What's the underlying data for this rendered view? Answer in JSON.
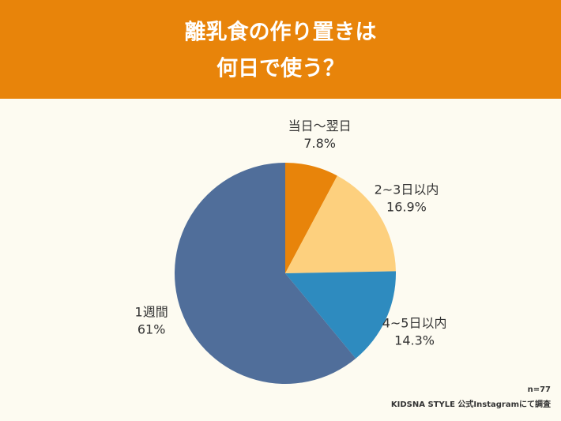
{
  "chart_data": {
    "type": "pie",
    "title": [
      "離乳食の作り置きは",
      "何日で使う？"
    ],
    "categories": [
      "当日〜翌日",
      "2~3日以内",
      "4~5日以内",
      "1週間"
    ],
    "values": [
      7.8,
      16.9,
      14.3,
      61
    ],
    "value_labels": [
      "7.8%",
      "16.9%",
      "14.3%",
      "61%"
    ],
    "colors": [
      "#e8840a",
      "#fdd07e",
      "#2e8bbf",
      "#506e9a"
    ],
    "notes": [
      "n=77",
      "KIDSNA STYLE 公式Instagramにて調査"
    ]
  }
}
